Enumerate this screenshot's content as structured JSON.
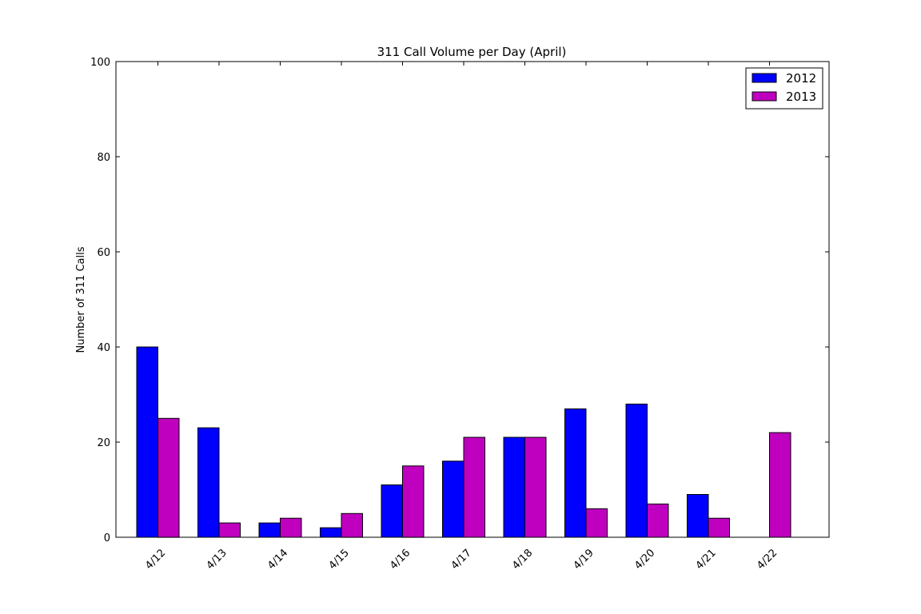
{
  "chart_data": {
    "type": "bar",
    "title": "311 Call Volume per Day (April)",
    "xlabel": "",
    "ylabel": "Number of 311 Calls",
    "categories": [
      "4/12",
      "4/13",
      "4/14",
      "4/15",
      "4/16",
      "4/17",
      "4/18",
      "4/19",
      "4/20",
      "4/21",
      "4/22"
    ],
    "series": [
      {
        "name": "2012",
        "color": "#0000ff",
        "values": [
          40,
          23,
          3,
          2,
          11,
          16,
          21,
          27,
          28,
          9,
          0
        ]
      },
      {
        "name": "2013",
        "color": "#bf00bf",
        "values": [
          25,
          3,
          4,
          5,
          15,
          21,
          21,
          6,
          7,
          4,
          22
        ]
      }
    ],
    "ylim": [
      0,
      100
    ],
    "yticks": [
      "0",
      "20",
      "40",
      "60",
      "80",
      "100"
    ],
    "grid": false,
    "legend_position": "top-right"
  }
}
